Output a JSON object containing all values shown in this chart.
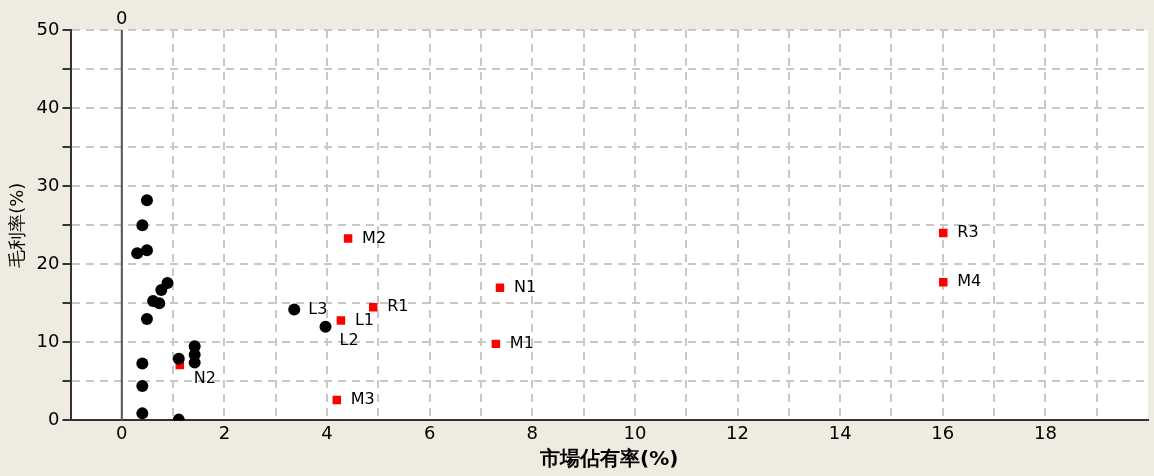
{
  "chart_data": {
    "type": "scatter",
    "xlabel": "市場佔有率(%)",
    "ylabel": "毛利率(%)",
    "xlim": [
      -1,
      20
    ],
    "ylim": [
      0,
      50
    ],
    "xticks": [
      0,
      {
        "value": 1,
        "label": null
      },
      2,
      {
        "value": 3,
        "label": null
      },
      4,
      {
        "value": 5,
        "label": null
      },
      6,
      {
        "value": 7,
        "label": null
      },
      8,
      {
        "value": 9,
        "label": null
      },
      10,
      {
        "value": 11,
        "label": null
      },
      12,
      {
        "value": 13,
        "label": null
      },
      14,
      {
        "value": 15,
        "label": null
      },
      16,
      {
        "value": 17,
        "label": null
      },
      18,
      {
        "value": 19,
        "label": null
      }
    ],
    "yticks": [
      0,
      {
        "value": 5,
        "label": null
      },
      10,
      {
        "value": 15,
        "label": null
      },
      20,
      {
        "value": 25,
        "label": null
      },
      30,
      {
        "value": 35,
        "label": null
      },
      40,
      {
        "value": 45,
        "label": null
      },
      50
    ],
    "grid": true,
    "legend": false,
    "ref_lines": [
      {
        "axis": "x",
        "value": 0,
        "label": "0",
        "color": "#555555"
      }
    ],
    "series": [
      {
        "color": "#000000",
        "marker": "circle",
        "x": [
          0.49,
          0.4,
          0.3,
          0.49,
          0.89,
          0.77,
          0.61,
          0.73,
          0.49,
          0.4,
          0.4,
          0.4,
          1.11,
          1.11,
          1.42,
          1.42,
          1.42,
          3.36,
          3.97
        ],
        "values": [
          28.2,
          25.0,
          21.4,
          21.8,
          17.6,
          16.7,
          15.3,
          15.0,
          13.0,
          7.3,
          4.4,
          0.9,
          0.1,
          7.9,
          9.5,
          8.4,
          7.4,
          14.2,
          12.0
        ]
      },
      {
        "color": "#ff0000",
        "marker": "square",
        "x": [
          1.13,
          4.41,
          4.9,
          4.27,
          7.37,
          7.29,
          4.19,
          16.01,
          16.01
        ],
        "values": [
          7.1,
          23.3,
          14.5,
          12.8,
          17.0,
          9.8,
          2.6,
          24.0,
          17.7
        ]
      }
    ],
    "annotations": [
      {
        "text": "L3",
        "x": 3.36,
        "y": 14.2
      },
      {
        "text": "L2",
        "x": 3.97,
        "y": 12.0
      },
      {
        "text": "N2",
        "x": 1.13,
        "y": 7.1
      },
      {
        "text": "M2",
        "x": 4.41,
        "y": 23.3
      },
      {
        "text": "R1",
        "x": 4.9,
        "y": 14.5
      },
      {
        "text": "L1",
        "x": 4.27,
        "y": 12.8
      },
      {
        "text": "N1",
        "x": 7.37,
        "y": 17.0
      },
      {
        "text": "M1",
        "x": 7.29,
        "y": 9.8
      },
      {
        "text": "M3",
        "x": 4.19,
        "y": 2.6
      },
      {
        "text": "R3",
        "x": 16.01,
        "y": 24.0
      },
      {
        "text": "M4",
        "x": 16.01,
        "y": 17.7
      }
    ]
  }
}
